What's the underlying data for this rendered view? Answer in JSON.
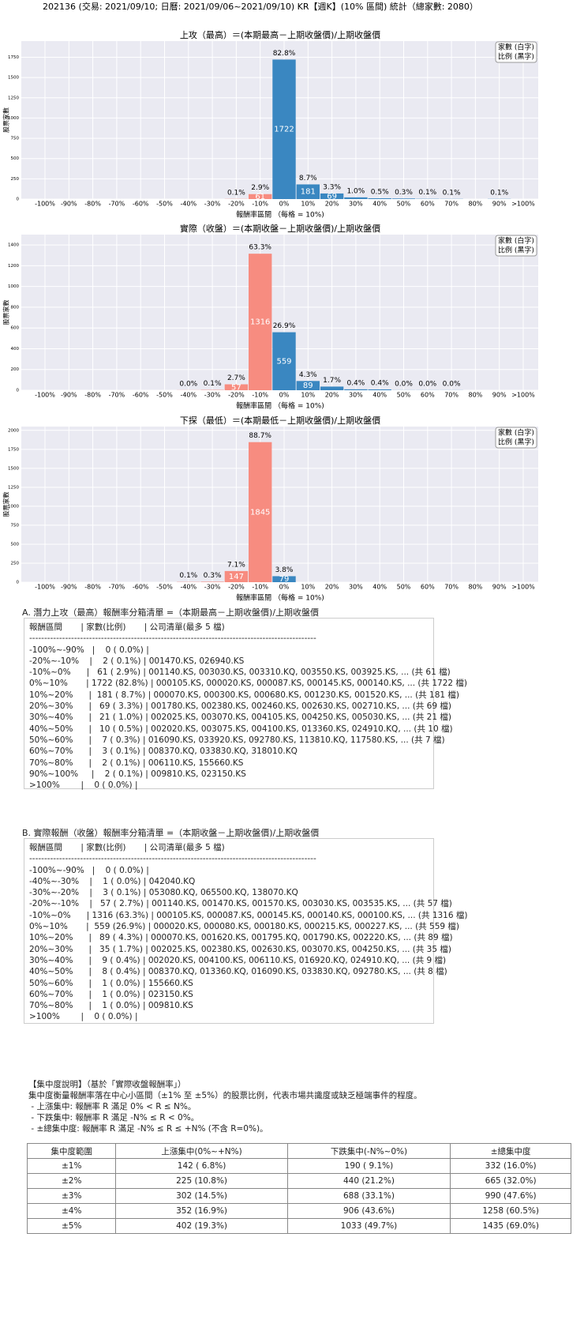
{
  "header": {
    "title": "202136 (交易: 2021/09/10; 日曆: 2021/09/06~2021/09/10) KR【週K】(10% 區間) 統計（總家數: 2080）"
  },
  "chart_data": [
    {
      "type": "bar",
      "title": "上攻（最高）＝(本期最高－上期收盤價)/上期收盤價",
      "xlabel": "報酬率區間 （每格 = 10%)",
      "ylabel": "股票家數",
      "legend_lines": [
        "家數 (白字)",
        "比例 (黑字)"
      ],
      "legend_position": "upper right",
      "grid": true,
      "background": "#eaeaf2",
      "categories": [
        "-100%",
        "-90%",
        "-80%",
        "-70%",
        "-60%",
        "-50%",
        "-40%",
        "-30%",
        "-20%",
        "-10%",
        "0%",
        "10%",
        "20%",
        "30%",
        "40%",
        "50%",
        "60%",
        "70%",
        "80%",
        "90%",
        ">100%"
      ],
      "values": [
        null,
        null,
        null,
        null,
        null,
        null,
        null,
        null,
        2,
        61,
        1722,
        181,
        69,
        21,
        10,
        7,
        3,
        2,
        null,
        2,
        null
      ],
      "pct_labels": [
        null,
        null,
        null,
        null,
        null,
        null,
        null,
        null,
        "0.1%",
        "2.9%",
        "82.8%",
        "8.7%",
        "3.3%",
        "1.0%",
        "0.5%",
        "0.3%",
        "0.1%",
        "0.1%",
        null,
        "0.1%",
        null
      ],
      "bar_colors": [
        "#f78c80",
        "#f78c80",
        "#f78c80",
        "#f78c80",
        "#f78c80",
        "#f78c80",
        "#f78c80",
        "#f78c80",
        "#f78c80",
        "#f78c80",
        "#3a87c1",
        "#3a87c1",
        "#3a87c1",
        "#3a87c1",
        "#3a87c1",
        "#3a87c1",
        "#3a87c1",
        "#3a87c1",
        "#3a87c1",
        "#3a87c1",
        "#3a87c1"
      ],
      "ylim": [
        0,
        1950
      ],
      "yticks": [
        0,
        250,
        500,
        750,
        1000,
        1250,
        1500,
        1750
      ]
    },
    {
      "type": "bar",
      "title": "實際（收盤）＝(本期收盤－上期收盤價)/上期收盤價",
      "xlabel": "報酬率區間 （每格 = 10%)",
      "ylabel": "股票家數",
      "legend_lines": [
        "家數 (白字)",
        "比例 (黑字)"
      ],
      "legend_position": "upper right",
      "grid": true,
      "background": "#eaeaf2",
      "categories": [
        "-100%",
        "-90%",
        "-80%",
        "-70%",
        "-60%",
        "-50%",
        "-40%",
        "-30%",
        "-20%",
        "-10%",
        "0%",
        "10%",
        "20%",
        "30%",
        "40%",
        "50%",
        "60%",
        "70%",
        "80%",
        "90%",
        ">100%"
      ],
      "values": [
        null,
        null,
        null,
        null,
        null,
        null,
        1,
        3,
        57,
        1316,
        559,
        89,
        35,
        9,
        8,
        1,
        1,
        1,
        null,
        null,
        null
      ],
      "pct_labels": [
        null,
        null,
        null,
        null,
        null,
        null,
        "0.0%",
        "0.1%",
        "2.7%",
        "63.3%",
        "26.9%",
        "4.3%",
        "1.7%",
        "0.4%",
        "0.4%",
        "0.0%",
        "0.0%",
        "0.0%",
        null,
        null,
        null
      ],
      "bar_colors": [
        "#f78c80",
        "#f78c80",
        "#f78c80",
        "#f78c80",
        "#f78c80",
        "#f78c80",
        "#f78c80",
        "#f78c80",
        "#f78c80",
        "#f78c80",
        "#3a87c1",
        "#3a87c1",
        "#3a87c1",
        "#3a87c1",
        "#3a87c1",
        "#3a87c1",
        "#3a87c1",
        "#3a87c1",
        "#3a87c1",
        "#3a87c1",
        "#3a87c1"
      ],
      "ylim": [
        0,
        1500
      ],
      "yticks": [
        0,
        200,
        400,
        600,
        800,
        1000,
        1200,
        1400
      ]
    },
    {
      "type": "bar",
      "title": "下探（最低）＝(本期最低－上期收盤價)/上期收盤價",
      "xlabel": "報酬率區間 （每格 = 10%)",
      "ylabel": "股票家數",
      "legend_lines": [
        "家數 (白字)",
        "比例 (黑字)"
      ],
      "legend_position": "upper right",
      "grid": true,
      "background": "#eaeaf2",
      "categories": [
        "-100%",
        "-90%",
        "-80%",
        "-70%",
        "-60%",
        "-50%",
        "-40%",
        "-30%",
        "-20%",
        "-10%",
        "0%",
        "10%",
        "20%",
        "30%",
        "40%",
        "50%",
        "60%",
        "70%",
        "80%",
        "90%",
        ">100%"
      ],
      "values": [
        null,
        null,
        null,
        null,
        null,
        null,
        3,
        6,
        147,
        1845,
        79,
        null,
        null,
        null,
        null,
        null,
        null,
        null,
        null,
        null,
        null
      ],
      "pct_labels": [
        null,
        null,
        null,
        null,
        null,
        null,
        "0.1%",
        "0.3%",
        "7.1%",
        "88.7%",
        "3.8%",
        null,
        null,
        null,
        null,
        null,
        null,
        null,
        null,
        null,
        null
      ],
      "bar_colors": [
        "#f78c80",
        "#f78c80",
        "#f78c80",
        "#f78c80",
        "#f78c80",
        "#f78c80",
        "#f78c80",
        "#f78c80",
        "#f78c80",
        "#f78c80",
        "#3a87c1",
        "#3a87c1",
        "#3a87c1",
        "#3a87c1",
        "#3a87c1",
        "#3a87c1",
        "#3a87c1",
        "#3a87c1",
        "#3a87c1",
        "#3a87c1",
        "#3a87c1"
      ],
      "ylim": [
        0,
        2050
      ],
      "yticks": [
        0,
        250,
        500,
        750,
        1000,
        1250,
        1500,
        1750,
        2000
      ]
    }
  ],
  "section_a": {
    "title": "A. 潛力上攻（最高）報酬率分箱清單 =（本期最高－上期收盤價)/上期收盤價",
    "lines": [
      "報酬區間       | 家數(比例)       | 公司清單(最多 5 檔)",
      "------------------------------------------------------------------------------------------------",
      "-100%~-90%   |    0 ( 0.0%) |",
      "-20%~-10%    |    2 ( 0.1%) | 001470.KS, 026940.KS",
      "-10%~0%      |   61 ( 2.9%) | 001140.KS, 003030.KS, 003310.KQ, 003550.KS, 003925.KS, ... (共 61 檔)",
      "0%~10%       | 1722 (82.8%) | 000105.KS, 000020.KS, 000087.KS, 000145.KS, 000140.KS, ... (共 1722 檔)",
      "10%~20%      |  181 ( 8.7%) | 000070.KS, 000300.KS, 000680.KS, 001230.KS, 001520.KS, ... (共 181 檔)",
      "20%~30%      |   69 ( 3.3%) | 001780.KS, 002380.KS, 002460.KS, 002630.KS, 002710.KS, ... (共 69 檔)",
      "30%~40%      |   21 ( 1.0%) | 002025.KS, 003070.KS, 004105.KS, 004250.KS, 005030.KS, ... (共 21 檔)",
      "40%~50%      |   10 ( 0.5%) | 002020.KS, 003075.KS, 004100.KS, 013360.KS, 024910.KQ, ... (共 10 檔)",
      "50%~60%      |    7 ( 0.3%) | 016090.KS, 033920.KS, 092780.KS, 113810.KQ, 117580.KS, ... (共 7 檔)",
      "60%~70%      |    3 ( 0.1%) | 008370.KQ, 033830.KQ, 318010.KQ",
      "70%~80%      |    2 ( 0.1%) | 006110.KS, 155660.KS",
      "90%~100%     |    2 ( 0.1%) | 009810.KS, 023150.KS",
      ">100%        |    0 ( 0.0%) |"
    ]
  },
  "section_b": {
    "title": "B. 實際報酬（收盤）報酬率分箱清單 =（本期收盤－上期收盤價)/上期收盤價",
    "lines": [
      "報酬區間       | 家數(比例)       | 公司清單(最多 5 檔)",
      "------------------------------------------------------------------------------------------------",
      "-100%~-90%   |    0 ( 0.0%) |",
      "-40%~-30%    |    1 ( 0.0%) | 042040.KQ",
      "-30%~-20%    |    3 ( 0.1%) | 053080.KQ, 065500.KQ, 138070.KQ",
      "-20%~-10%    |   57 ( 2.7%) | 001140.KS, 001470.KS, 001570.KS, 003030.KS, 003535.KS, ... (共 57 檔)",
      "-10%~0%      | 1316 (63.3%) | 000105.KS, 000087.KS, 000145.KS, 000140.KS, 000100.KS, ... (共 1316 檔)",
      "0%~10%       |  559 (26.9%) | 000020.KS, 000080.KS, 000180.KS, 000215.KS, 000227.KS, ... (共 559 檔)",
      "10%~20%      |   89 ( 4.3%) | 000070.KS, 001620.KS, 001795.KQ, 001790.KS, 002220.KS, ... (共 89 檔)",
      "20%~30%      |   35 ( 1.7%) | 002025.KS, 002380.KS, 002630.KS, 003070.KS, 004250.KS, ... (共 35 檔)",
      "30%~40%      |    9 ( 0.4%) | 002020.KS, 004100.KS, 006110.KS, 016920.KQ, 024910.KQ, ... (共 9 檔)",
      "40%~50%      |    8 ( 0.4%) | 008370.KQ, 013360.KQ, 016090.KS, 033830.KQ, 092780.KS, ... (共 8 檔)",
      "50%~60%      |    1 ( 0.0%) | 155660.KS",
      "60%~70%      |    1 ( 0.0%) | 023150.KS",
      "70%~80%      |    1 ( 0.0%) | 009810.KS",
      ">100%        |    0 ( 0.0%) |"
    ]
  },
  "concentration": {
    "title": "【集中度說明】（基於「實際收盤報酬率」）",
    "lines": [
      "集中度衡量報酬率落在中心小區間（±1% 至 ±5%）的股票比例，代表市場共識度或缺乏極端事件的程度。",
      " - 上漲集中: 報酬率 R 滿足 0% < R ≤ N%。",
      " - 下跌集中: 報酬率 R 滿足 -N% ≤ R < 0%。",
      " - ±總集中度: 報酬率 R 滿足 -N% ≤ R ≤ +N% (不含 R=0%)。"
    ],
    "table": {
      "header": [
        "集中度範圍",
        "上漲集中(0%~+N%)",
        "下跌集中(-N%~0%)",
        "±總集中度"
      ],
      "rows": [
        [
          "±1%",
          "142 ( 6.8%)",
          "190 ( 9.1%)",
          "332 (16.0%)"
        ],
        [
          "±2%",
          "225 (10.8%)",
          "440 (21.2%)",
          "665 (32.0%)"
        ],
        [
          "±3%",
          "302 (14.5%)",
          "688 (33.1%)",
          "990 (47.6%)"
        ],
        [
          "±4%",
          "352 (16.9%)",
          "906 (43.6%)",
          "1258 (60.5%)"
        ],
        [
          "±5%",
          "402 (19.3%)",
          "1033 (49.7%)",
          "1435 (69.0%)"
        ]
      ]
    }
  }
}
